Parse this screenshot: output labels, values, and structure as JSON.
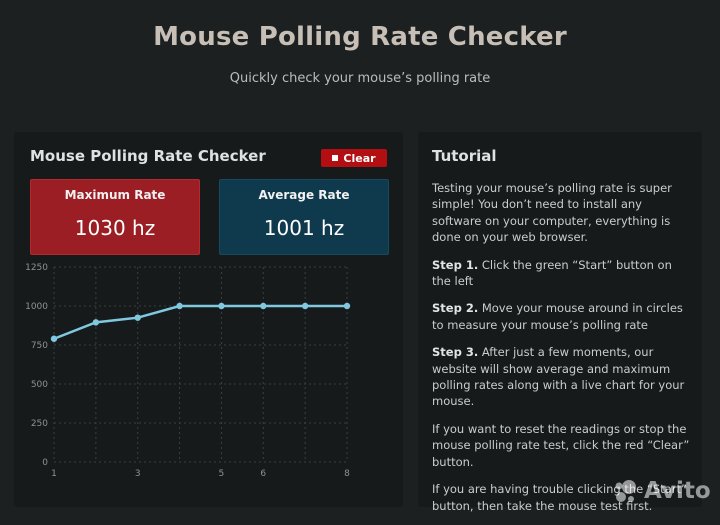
{
  "header": {
    "title": "Mouse Polling Rate Checker",
    "subtitle": "Quickly check your mouse’s polling rate"
  },
  "checker": {
    "title": "Mouse Polling Rate Checker",
    "clear_label": "Clear",
    "max_label": "Maximum Rate",
    "max_value": "1030 hz",
    "avg_label": "Average Rate",
    "avg_value": "1001 hz"
  },
  "chart_data": {
    "type": "line",
    "x": [
      1,
      2,
      3,
      4,
      5,
      6,
      7,
      8
    ],
    "values": [
      790,
      895,
      925,
      1000,
      1000,
      1000,
      1000,
      1000
    ],
    "xticks": [
      1,
      3,
      5,
      6,
      8
    ],
    "yticks": [
      0,
      250,
      500,
      750,
      1000,
      1250
    ],
    "ylim": [
      0,
      1250
    ],
    "xlim": [
      1,
      8
    ],
    "grid": true,
    "line_color": "#7fc8e0"
  },
  "tutorial": {
    "title": "Tutorial",
    "intro": "Testing your mouse’s polling rate is super simple! You don’t need to install any software on your computer, everything is done on your web browser.",
    "step1_label": "Step 1.",
    "step1_text": " Click the green “Start” button on the left",
    "step2_label": "Step 2.",
    "step2_text": " Move your mouse around in circles to measure your mouse’s polling rate",
    "step3_label": "Step 3.",
    "step3_text": " After just a few moments, our website will show average and maximum polling rates along with a live chart for your mouse.",
    "reset_text": "If you want to reset the readings or stop the mouse polling rate test, click the red “Clear” button.",
    "trouble_text": "If you are having trouble clicking the “Start” button, then take the mouse test first."
  },
  "watermark": {
    "text": "Avito",
    "icon": "avito-logo-icon"
  }
}
